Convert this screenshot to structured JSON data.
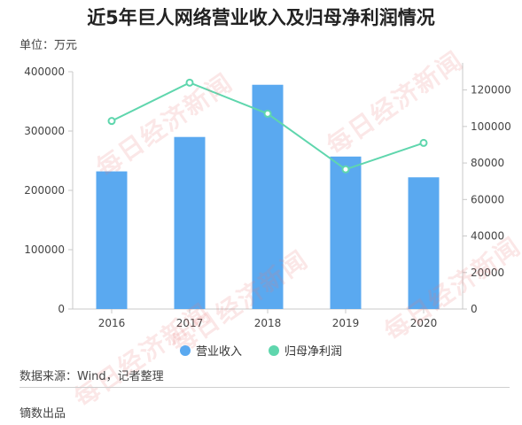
{
  "title": "近5年巨人网络营业收入及归母净利润情况",
  "unit_label": "单位：万元",
  "source_label": "数据来源：Wind，记者整理",
  "footer_label": "镝数出品",
  "watermark_text": "每日经济新闻",
  "colors": {
    "bar": "#5aa9f0",
    "line": "#5fd6ad",
    "axis": "#c8c8c8",
    "text": "#444444"
  },
  "chart_data": {
    "type": "bar+line",
    "categories": [
      "2016",
      "2017",
      "2018",
      "2019",
      "2020"
    ],
    "series": [
      {
        "name": "营业收入",
        "type": "bar",
        "axis": "left",
        "values": [
          232000,
          290000,
          378000,
          257000,
          222000
        ]
      },
      {
        "name": "归母净利润",
        "type": "line",
        "axis": "right",
        "values": [
          103000,
          124000,
          107000,
          76500,
          91000
        ]
      }
    ],
    "y_left": {
      "min": 0,
      "max": 400000,
      "ticks": [
        "0",
        "100000",
        "200000",
        "300000",
        "400000"
      ]
    },
    "y_right": {
      "min": 0,
      "max": 130000,
      "ticks": [
        "0",
        "20000",
        "40000",
        "60000",
        "80000",
        "100000",
        "120000"
      ]
    },
    "legend": "bottom-center"
  }
}
